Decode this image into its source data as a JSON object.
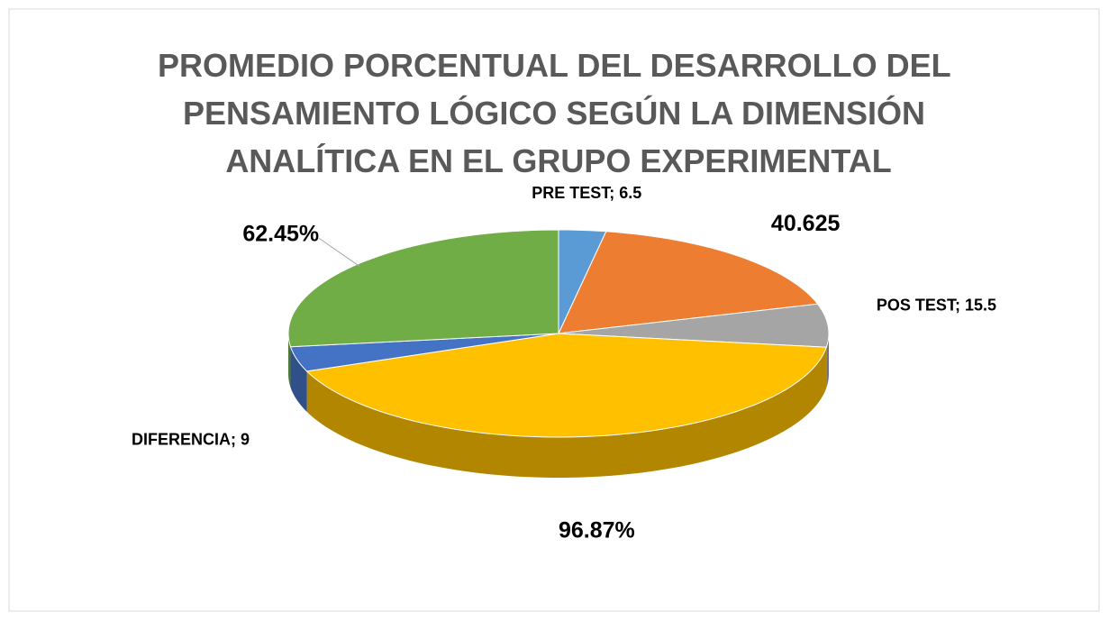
{
  "chart_data": {
    "type": "pie3d",
    "title": [
      "PROMEDIO PORCENTUAL DEL DESARROLLO DEL",
      "PENSAMIENTO LÓGICO SEGÚN LA DIMENSIÓN",
      "ANALÍTICA EN EL GRUPO EXPERIMENTAL"
    ],
    "categories": [
      "PRE TEST",
      null,
      "POS TEST",
      null,
      "DIFERENCIA",
      null
    ],
    "values": [
      6.5,
      40.625,
      15.5,
      96.87,
      9,
      62.45
    ],
    "value_labels": [
      null,
      null,
      null,
      "96.87%",
      null,
      "62.45%"
    ],
    "label_separator": "; ",
    "colors": [
      "#5b9bd5",
      "#ed7d31",
      "#a5a5a5",
      "#ffc000",
      "#4472c4",
      "#70ad47"
    ]
  }
}
